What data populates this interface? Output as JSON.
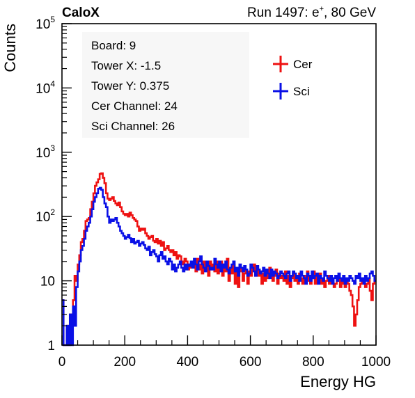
{
  "header": {
    "brand": "CaloX",
    "run_prefix": "Run 1497: e",
    "run_sup": "+",
    "run_suffix": ", 80 GeV"
  },
  "info_box": {
    "lines": [
      "Board: 9",
      "Tower X: -1.5",
      "Tower Y: 0.375",
      "Cer Channel: 24",
      "Sci Channel: 26"
    ]
  },
  "chart_data": {
    "type": "line",
    "title": "",
    "xlabel": "Energy HG",
    "ylabel": "Counts",
    "xlim": [
      0,
      1000
    ],
    "ylim": [
      1,
      100000
    ],
    "y_scale": "log",
    "x_ticks": [
      0,
      200,
      400,
      600,
      800,
      1000
    ],
    "x_tick_labels": [
      "0",
      "200",
      "400",
      "600",
      "800",
      "1000"
    ],
    "y_ticks": [
      1,
      10,
      100,
      1000,
      10000,
      100000
    ],
    "y_tick_labels": [
      {
        "base": "1",
        "exp": ""
      },
      {
        "base": "10",
        "exp": ""
      },
      {
        "base": "10",
        "exp": "2"
      },
      {
        "base": "10",
        "exp": "3"
      },
      {
        "base": "10",
        "exp": "4"
      },
      {
        "base": "10",
        "exp": "5"
      }
    ],
    "grid": false,
    "legend_position": "top-right",
    "bin_width": 5,
    "series": [
      {
        "name": "Cer",
        "color": "#ee1111",
        "x": [
          0,
          5,
          10,
          15,
          20,
          25,
          30,
          35,
          40,
          45,
          50,
          55,
          60,
          65,
          70,
          75,
          80,
          85,
          90,
          95,
          100,
          105,
          110,
          115,
          120,
          125,
          130,
          135,
          140,
          145,
          150,
          155,
          160,
          165,
          170,
          175,
          180,
          185,
          190,
          195,
          200,
          205,
          210,
          215,
          220,
          225,
          230,
          235,
          240,
          245,
          250,
          255,
          260,
          265,
          270,
          275,
          280,
          285,
          290,
          295,
          300,
          305,
          310,
          315,
          320,
          325,
          330,
          335,
          340,
          345,
          350,
          355,
          360,
          365,
          370,
          375,
          380,
          385,
          390,
          395,
          400,
          405,
          410,
          415,
          420,
          425,
          430,
          435,
          440,
          445,
          450,
          455,
          460,
          465,
          470,
          475,
          480,
          485,
          490,
          495,
          500,
          505,
          510,
          515,
          520,
          525,
          530,
          535,
          540,
          545,
          550,
          555,
          560,
          565,
          570,
          575,
          580,
          585,
          590,
          595,
          600,
          605,
          610,
          615,
          620,
          625,
          630,
          635,
          640,
          645,
          650,
          655,
          660,
          665,
          670,
          675,
          680,
          685,
          690,
          695,
          700,
          705,
          710,
          715,
          720,
          725,
          730,
          735,
          740,
          745,
          750,
          755,
          760,
          765,
          770,
          775,
          780,
          785,
          790,
          795,
          800,
          805,
          810,
          815,
          820,
          825,
          830,
          835,
          840,
          845,
          850,
          855,
          860,
          865,
          870,
          875,
          880,
          885,
          890,
          895,
          900,
          905,
          910,
          915,
          920,
          925,
          930,
          935,
          940,
          945,
          950,
          955,
          960,
          965,
          970,
          975,
          980,
          985,
          990,
          995
        ],
        "counts": [
          5,
          1,
          1,
          2,
          1,
          3,
          2,
          5,
          12,
          10,
          18,
          25,
          40,
          45,
          60,
          85,
          90,
          95,
          130,
          170,
          230,
          300,
          340,
          380,
          460,
          470,
          400,
          330,
          230,
          190,
          180,
          190,
          200,
          175,
          160,
          150,
          165,
          140,
          120,
          110,
          105,
          110,
          100,
          115,
          105,
          95,
          90,
          85,
          70,
          60,
          65,
          62,
          65,
          55,
          50,
          45,
          48,
          50,
          42,
          40,
          45,
          38,
          42,
          35,
          40,
          30,
          32,
          35,
          30,
          28,
          30,
          25,
          28,
          22,
          25,
          24,
          20,
          18,
          22,
          20,
          15,
          18,
          16,
          20,
          18,
          14,
          22,
          15,
          18,
          13,
          20,
          16,
          17,
          12,
          20,
          15,
          18,
          14,
          20,
          13,
          16,
          20,
          12,
          18,
          14,
          22,
          10,
          16,
          13,
          18,
          9,
          15,
          8,
          14,
          16,
          10,
          13,
          15,
          9,
          14,
          12,
          16,
          18,
          12,
          15,
          12,
          14,
          9,
          13,
          10,
          14,
          11,
          16,
          13,
          10,
          12,
          15,
          9,
          13,
          11,
          12,
          10,
          14,
          9,
          12,
          8,
          11,
          13,
          10,
          12,
          9,
          13,
          11,
          9,
          12,
          10,
          14,
          10,
          9,
          11,
          14,
          9,
          12,
          10,
          13,
          9,
          11,
          8,
          10,
          12,
          9,
          11,
          10,
          8,
          9,
          10,
          11,
          8,
          10,
          9,
          8,
          10,
          9,
          7,
          6,
          4,
          2,
          3,
          5,
          8,
          9,
          10,
          10,
          8,
          9,
          11,
          7,
          5,
          9,
          10
        ]
      },
      {
        "name": "Sci",
        "color": "#0a10e6",
        "x": [
          0,
          5,
          10,
          15,
          20,
          25,
          30,
          35,
          40,
          45,
          50,
          55,
          60,
          65,
          70,
          75,
          80,
          85,
          90,
          95,
          100,
          105,
          110,
          115,
          120,
          125,
          130,
          135,
          140,
          145,
          150,
          155,
          160,
          165,
          170,
          175,
          180,
          185,
          190,
          195,
          200,
          205,
          210,
          215,
          220,
          225,
          230,
          235,
          240,
          245,
          250,
          255,
          260,
          265,
          270,
          275,
          280,
          285,
          290,
          295,
          300,
          305,
          310,
          315,
          320,
          325,
          330,
          335,
          340,
          345,
          350,
          355,
          360,
          365,
          370,
          375,
          380,
          385,
          390,
          395,
          400,
          405,
          410,
          415,
          420,
          425,
          430,
          435,
          440,
          445,
          450,
          455,
          460,
          465,
          470,
          475,
          480,
          485,
          490,
          495,
          500,
          505,
          510,
          515,
          520,
          525,
          530,
          535,
          540,
          545,
          550,
          555,
          560,
          565,
          570,
          575,
          580,
          585,
          590,
          595,
          600,
          605,
          610,
          615,
          620,
          625,
          630,
          635,
          640,
          645,
          650,
          655,
          660,
          665,
          670,
          675,
          680,
          685,
          690,
          695,
          700,
          705,
          710,
          715,
          720,
          725,
          730,
          735,
          740,
          745,
          750,
          755,
          760,
          765,
          770,
          775,
          780,
          785,
          790,
          795,
          800,
          805,
          810,
          815,
          820,
          825,
          830,
          835,
          840,
          845,
          850,
          855,
          860,
          865,
          870,
          875,
          880,
          885,
          890,
          895,
          900,
          905,
          910,
          915,
          920,
          925,
          930,
          935,
          940,
          945,
          950,
          955,
          960,
          965,
          970,
          975,
          980,
          985,
          990,
          995
        ],
        "counts": [
          5,
          1,
          1,
          2,
          1,
          3,
          1,
          4,
          2,
          8,
          14,
          20,
          30,
          35,
          45,
          60,
          70,
          80,
          100,
          130,
          170,
          200,
          230,
          270,
          280,
          260,
          200,
          160,
          140,
          100,
          80,
          90,
          85,
          90,
          95,
          80,
          70,
          60,
          55,
          50,
          45,
          48,
          52,
          46,
          40,
          45,
          38,
          40,
          42,
          35,
          38,
          40,
          36,
          32,
          30,
          34,
          25,
          28,
          30,
          26,
          24,
          20,
          25,
          28,
          22,
          24,
          20,
          18,
          22,
          20,
          15,
          18,
          14,
          16,
          18,
          20,
          16,
          14,
          18,
          15,
          18,
          17,
          20,
          16,
          22,
          18,
          15,
          20,
          24,
          18,
          16,
          14,
          20,
          17,
          15,
          16,
          15,
          22,
          18,
          16,
          20,
          14,
          18,
          16,
          20,
          15,
          13,
          16,
          18,
          20,
          14,
          16,
          12,
          18,
          16,
          14,
          17,
          15,
          12,
          13,
          18,
          16,
          14,
          12,
          17,
          15,
          13,
          14,
          16,
          12,
          15,
          13,
          11,
          15,
          12,
          14,
          13,
          11,
          12,
          14,
          13,
          12,
          11,
          13,
          14,
          10,
          12,
          14,
          13,
          11,
          12,
          10,
          14,
          12,
          11,
          9,
          13,
          12,
          10,
          14,
          11,
          12,
          13,
          9,
          12,
          11,
          10,
          14,
          12,
          11,
          10,
          12,
          9,
          11,
          12,
          10,
          13,
          11,
          10,
          12,
          9,
          11,
          10,
          12,
          11,
          10,
          9,
          12,
          11,
          13,
          10,
          11,
          9,
          12,
          10,
          11,
          13,
          14,
          12,
          10
        ]
      }
    ]
  }
}
